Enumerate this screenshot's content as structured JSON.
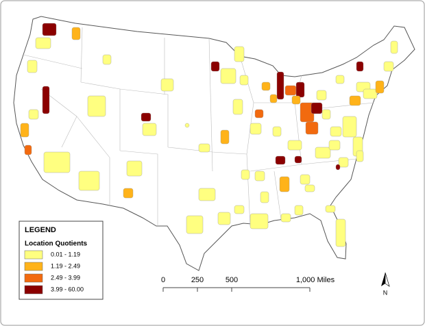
{
  "legend": {
    "title": "LEGEND",
    "subtitle": "Location Quotients",
    "classes": [
      {
        "label": "0.01 - 1.19",
        "color": "#ffff80"
      },
      {
        "label": "1.19 - 2.49",
        "color": "#ffb31a"
      },
      {
        "label": "2.49 - 3.99",
        "color": "#f26a0f"
      },
      {
        "label": "3.99 - 60.00",
        "color": "#8b0000"
      }
    ]
  },
  "scale_bar": {
    "labels": [
      "0",
      "250",
      "500",
      "1,000 Miles"
    ]
  },
  "north_arrow": {
    "label": "N"
  }
}
